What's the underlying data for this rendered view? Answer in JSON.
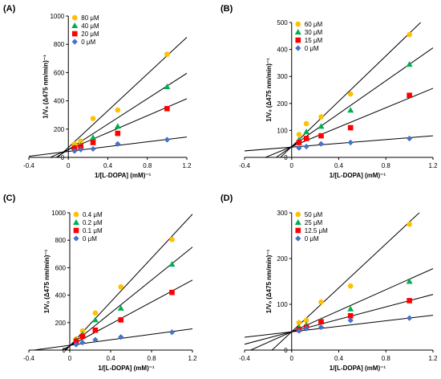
{
  "chart_data": [
    {
      "panel_label": "(A)",
      "type": "scatter",
      "xlabel": "1/[L-DOPA] (mM)⁻¹",
      "ylabel": "1/Vₒ (Δ475 nm/min)⁻¹",
      "xlim": [
        -0.4,
        1.2
      ],
      "ylim": [
        0,
        1000
      ],
      "xticks": [
        -0.4,
        0,
        0.4,
        0.8,
        1.2
      ],
      "yticks": [
        0,
        200,
        400,
        600,
        800,
        1000
      ],
      "xtick_labels": [
        "-0.4",
        "0",
        "0.4",
        "0.8",
        "1.2"
      ],
      "ytick_labels": [
        "0",
        "200",
        "400",
        "600",
        "800",
        "1000"
      ],
      "legend_position": "top-left",
      "series": [
        {
          "name": "80 μM",
          "color": "#ffc000",
          "marker": "circle",
          "x": [
            0.0625,
            0.125,
            0.25,
            0.5,
            1.0
          ],
          "y": [
            95,
            115,
            275,
            335,
            730
          ],
          "fit": {
            "slope": 650,
            "intercept": 70
          }
        },
        {
          "name": "40 μM",
          "color": "#00b050",
          "marker": "triangle",
          "x": [
            0.0625,
            0.125,
            0.25,
            0.5,
            1.0
          ],
          "y": [
            70,
            85,
            140,
            220,
            500
          ],
          "fit": {
            "slope": 450,
            "intercept": 55
          }
        },
        {
          "name": "20 μM",
          "color": "#ff0000",
          "marker": "square",
          "x": [
            0.0625,
            0.125,
            0.25,
            0.5,
            1.0
          ],
          "y": [
            65,
            75,
            105,
            170,
            345
          ],
          "fit": {
            "slope": 300,
            "intercept": 55
          }
        },
        {
          "name": "0 μM",
          "color": "#4472c4",
          "marker": "diamond",
          "x": [
            0.0625,
            0.125,
            0.25,
            0.5,
            1.0
          ],
          "y": [
            45,
            55,
            60,
            95,
            125
          ],
          "fit": {
            "slope": 85,
            "intercept": 42
          }
        }
      ]
    },
    {
      "panel_label": "(B)",
      "type": "scatter",
      "xlabel": "1/[L-DOPA] (mM)⁻¹",
      "ylabel": "1/Vₒ (Δ475 nm/min)⁻¹",
      "xlim": [
        -0.4,
        1.2
      ],
      "ylim": [
        0,
        500
      ],
      "xticks": [
        -0.4,
        0,
        0.4,
        0.8,
        1.2
      ],
      "yticks": [
        0,
        100,
        200,
        300,
        400,
        500
      ],
      "xtick_labels": [
        "-0.4",
        "0",
        "0.4",
        "0.8",
        "1.2"
      ],
      "ytick_labels": [
        "0",
        "100",
        "200",
        "300",
        "400",
        "500"
      ],
      "legend_position": "top-left",
      "series": [
        {
          "name": "60 μM",
          "color": "#ffc000",
          "marker": "circle",
          "x": [
            0.0625,
            0.125,
            0.25,
            0.5,
            1.0
          ],
          "y": [
            85,
            125,
            150,
            235,
            455
          ],
          "fit": {
            "slope": 420,
            "intercept": 40
          }
        },
        {
          "name": "30 μM",
          "color": "#00b050",
          "marker": "triangle",
          "x": [
            0.0625,
            0.125,
            0.25,
            0.5,
            1.0
          ],
          "y": [
            65,
            95,
            115,
            175,
            345
          ],
          "fit": {
            "slope": 305,
            "intercept": 40
          }
        },
        {
          "name": "15 μM",
          "color": "#ff0000",
          "marker": "square",
          "x": [
            0.0625,
            0.125,
            0.25,
            0.5,
            1.0
          ],
          "y": [
            55,
            70,
            80,
            110,
            230
          ],
          "fit": {
            "slope": 180,
            "intercept": 40
          }
        },
        {
          "name": "0 μM",
          "color": "#4472c4",
          "marker": "diamond",
          "x": [
            0.0625,
            0.125,
            0.25,
            0.5,
            1.0
          ],
          "y": [
            35,
            40,
            50,
            55,
            70
          ],
          "fit": {
            "slope": 35,
            "intercept": 38
          }
        }
      ]
    },
    {
      "panel_label": "(C)",
      "type": "scatter",
      "xlabel": "1/[L-DOPA] (mM)⁻¹",
      "ylabel": "1/Vₒ (Δ475 nm/min)⁻¹",
      "xlim": [
        -0.4,
        1.2
      ],
      "ylim": [
        0,
        1000
      ],
      "xticks": [
        -0.4,
        0,
        0.4,
        0.8,
        1.2
      ],
      "yticks": [
        0,
        200,
        400,
        600,
        800,
        1000
      ],
      "xtick_labels": [
        "-0.4",
        "0",
        "0.4",
        "0.8",
        "1.2"
      ],
      "ytick_labels": [
        "0",
        "200",
        "400",
        "600",
        "800",
        "1000"
      ],
      "legend_position": "top-left",
      "series": [
        {
          "name": "0.4 μM",
          "color": "#ffc000",
          "marker": "circle",
          "x": [
            0.0625,
            0.125,
            0.25,
            0.5,
            1.0
          ],
          "y": [
            80,
            140,
            270,
            460,
            805
          ],
          "fit": {
            "slope": 800,
            "intercept": 30
          }
        },
        {
          "name": "0.2 μM",
          "color": "#00b050",
          "marker": "triangle",
          "x": [
            0.0625,
            0.125,
            0.25,
            0.5,
            1.0
          ],
          "y": [
            75,
            115,
            220,
            305,
            625
          ],
          "fit": {
            "slope": 600,
            "intercept": 30
          }
        },
        {
          "name": "0.1 μM",
          "color": "#ff0000",
          "marker": "square",
          "x": [
            0.0625,
            0.125,
            0.25,
            0.5,
            1.0
          ],
          "y": [
            65,
            100,
            145,
            220,
            420
          ],
          "fit": {
            "slope": 400,
            "intercept": 30
          }
        },
        {
          "name": "0 μM",
          "color": "#4472c4",
          "marker": "diamond",
          "x": [
            0.0625,
            0.125,
            0.25,
            0.5,
            1.0
          ],
          "y": [
            40,
            55,
            75,
            95,
            130
          ],
          "fit": {
            "slope": 100,
            "intercept": 35
          }
        }
      ]
    },
    {
      "panel_label": "(D)",
      "type": "scatter",
      "xlabel": "1/[L-DOPA] (mM)⁻¹",
      "ylabel": "1/Vₒ (Δ475 nm/min)⁻¹",
      "xlim": [
        -0.4,
        1.2
      ],
      "ylim": [
        0,
        300
      ],
      "xticks": [
        -0.4,
        0,
        0.4,
        0.8,
        1.2
      ],
      "yticks": [
        0,
        100,
        200,
        300
      ],
      "xtick_labels": [
        "-0.4",
        "0",
        "0.4",
        "0.8",
        "1.2"
      ],
      "ytick_labels": [
        "0",
        "100",
        "200",
        "300"
      ],
      "legend_position": "top-left",
      "series": [
        {
          "name": "50 μM",
          "color": "#ffc000",
          "marker": "circle",
          "x": [
            0.0625,
            0.125,
            0.25,
            0.5,
            1.0
          ],
          "y": [
            60,
            65,
            105,
            140,
            275
          ],
          "fit": {
            "slope": 240,
            "intercept": 40
          }
        },
        {
          "name": "25 μM",
          "color": "#00b050",
          "marker": "triangle",
          "x": [
            0.0625,
            0.125,
            0.25,
            0.5,
            1.0
          ],
          "y": [
            50,
            55,
            65,
            90,
            150
          ],
          "fit": {
            "slope": 115,
            "intercept": 40
          }
        },
        {
          "name": "12.5 μM",
          "color": "#ff0000",
          "marker": "square",
          "x": [
            0.0625,
            0.125,
            0.25,
            0.5,
            1.0
          ],
          "y": [
            45,
            50,
            62,
            75,
            108
          ],
          "fit": {
            "slope": 68,
            "intercept": 40
          }
        },
        {
          "name": "0 μM",
          "color": "#4472c4",
          "marker": "diamond",
          "x": [
            0.0625,
            0.125,
            0.25,
            0.5,
            1.0
          ],
          "y": [
            42,
            47,
            50,
            65,
            70
          ],
          "fit": {
            "slope": 30,
            "intercept": 40
          }
        }
      ]
    }
  ]
}
